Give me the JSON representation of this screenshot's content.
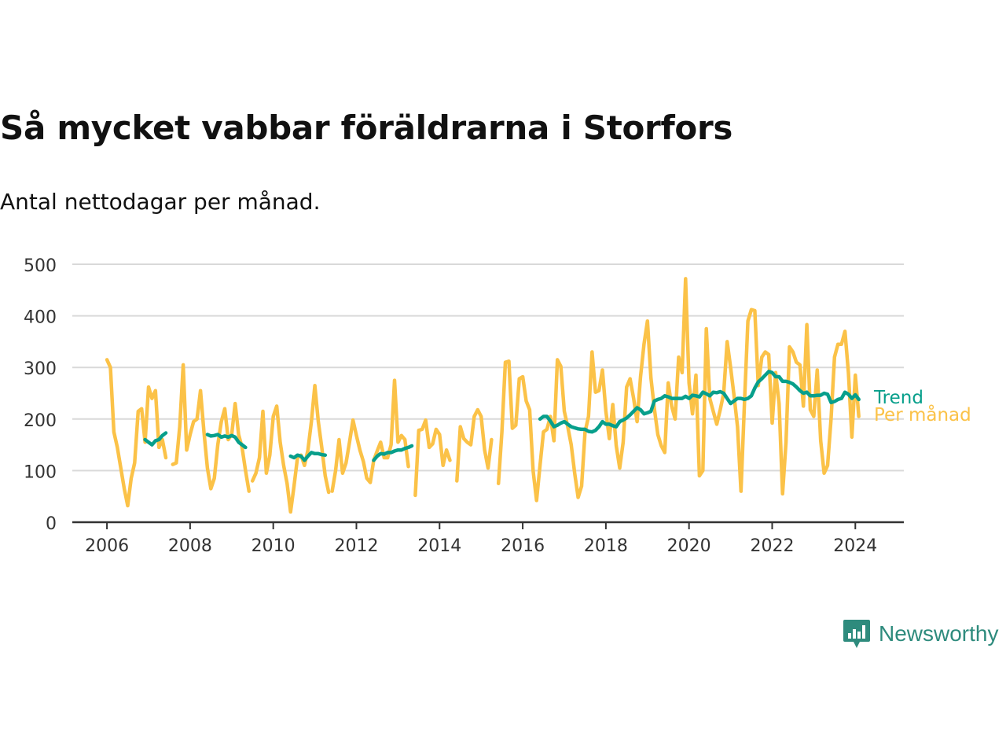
{
  "header": {
    "title": "Så mycket vabbar föräldrarna i Storfors",
    "subtitle": "Antal nettodagar per månad."
  },
  "brand": {
    "name": "Newsworthy",
    "icon": "newsworthy-logo-icon",
    "color": "#2e8b7d"
  },
  "chart_data": {
    "type": "line",
    "title": "Så mycket vabbar föräldrarna i Storfors",
    "subtitle": "Antal nettodagar per månad.",
    "xlabel": "",
    "ylabel": "",
    "xlim": [
      "2005-03",
      "2025-03"
    ],
    "ylim": [
      0,
      500
    ],
    "x_ticks": [
      "2006",
      "2008",
      "2010",
      "2012",
      "2014",
      "2016",
      "2018",
      "2020",
      "2022",
      "2024"
    ],
    "y_ticks": [
      0,
      100,
      200,
      300,
      400,
      500
    ],
    "grid": "horizontal",
    "legend": "direct-labels-right",
    "series": [
      {
        "name": "Per månad",
        "color": "#fbc248",
        "segments": [
          {
            "start": "2006-01",
            "values": [
              315,
              300,
              175,
              145,
              105,
              65,
              32,
              85,
              115,
              215,
              220,
              155,
              262,
              240,
              255,
              145,
              160,
              125
            ]
          },
          {
            "start": "2007-08",
            "values": [
              112,
              115,
              185,
              305,
              140,
              170,
              195,
              200,
              255,
              175,
              105,
              65,
              85,
              150,
              195,
              220,
              160,
              170,
              230,
              170,
              145,
              100,
              60
            ]
          },
          {
            "start": "2009-07",
            "values": [
              80,
              95,
              125,
              215,
              95,
              130,
              205,
              225,
              155,
              110,
              75,
              20,
              70,
              125,
              130,
              110,
              140,
              195,
              265,
              195,
              145,
              90,
              58
            ]
          },
          {
            "start": "2011-06",
            "values": [
              60,
              100,
              160,
              95,
              115,
              155,
              198,
              168,
              140,
              118,
              85,
              77,
              120,
              138,
              155,
              125,
              125,
              150,
              275,
              155,
              168,
              160,
              108
            ]
          },
          {
            "start": "2013-06",
            "values": [
              52,
              178,
              180,
              198,
              145,
              152,
              180,
              170,
              110,
              140,
              120
            ]
          },
          {
            "start": "2014-06",
            "values": [
              80,
              185,
              162,
              155,
              150,
              205,
              218,
              205,
              140,
              105,
              160
            ]
          },
          {
            "start": "2015-06",
            "values": [
              75,
              175,
              310,
              312,
              182,
              188,
              278,
              282,
              235,
              218,
              100,
              42,
              110,
              175,
              180,
              205,
              158,
              315,
              302,
              215,
              185,
              150,
              95,
              48,
              70,
              175,
              205,
              330,
              252,
              255,
              295,
              215,
              162,
              228,
              148,
              105,
              155,
              262,
              278,
              240,
              195,
              282,
              345,
              390,
              280,
              220,
              170,
              148,
              135,
              270,
              225,
              200,
              320,
              290,
              472,
              270,
              210,
              285,
              90,
              100,
              375,
              240,
              215,
              190,
              218,
              250,
              350,
              300,
              245,
              185,
              60,
              230,
              390,
              412,
              410,
              265,
              320,
              330,
              325,
              192,
              290,
              230,
              55,
              155,
              340,
              330,
              310,
              305,
              225,
              383,
              218,
              205,
              295,
              158,
              95,
              110,
              200,
              320,
              345,
              345,
              370,
              290,
              165,
              285,
              205
            ]
          }
        ]
      },
      {
        "name": "Trend",
        "color": "#079f8b",
        "segments": [
          {
            "start": "2006-12",
            "values": [
              160,
              155,
              150,
              158,
              160,
              168,
              173
            ]
          },
          {
            "start": "2008-06",
            "values": [
              170,
              167,
              168,
              170,
              165,
              167,
              165,
              168,
              165,
              155,
              150,
              145
            ]
          },
          {
            "start": "2010-06",
            "values": [
              128,
              125,
              130,
              128,
              120,
              128,
              135,
              133,
              133,
              131,
              130
            ]
          },
          {
            "start": "2012-06",
            "values": [
              120,
              128,
              133,
              132,
              135,
              135,
              138,
              140,
              140,
              143,
              145,
              148
            ]
          },
          {
            "start": "2016-06",
            "values": [
              200,
              205,
              205,
              196,
              185,
              188,
              192,
              195,
              190,
              185,
              183,
              181,
              180,
              180,
              176,
              175,
              178,
              185,
              195,
              190,
              190,
              187,
              185,
              195,
              198,
              202,
              208,
              215,
              222,
              218,
              210,
              212,
              215,
              235,
              238,
              240,
              245,
              243,
              240,
              240,
              240,
              240,
              244,
              240,
              246,
              245,
              243,
              252,
              249,
              245,
              252,
              251,
              253,
              250,
              240,
              230,
              235,
              240,
              240,
              238,
              240,
              245,
              260,
              272,
              278,
              285,
              292,
              290,
              282,
              282,
              273,
              273,
              271,
              268,
              262,
              255,
              250,
              252,
              245,
              245,
              246,
              246,
              250,
              248,
              232,
              234,
              238,
              240,
              252,
              248,
              240,
              247,
              238
            ]
          }
        ]
      }
    ]
  }
}
